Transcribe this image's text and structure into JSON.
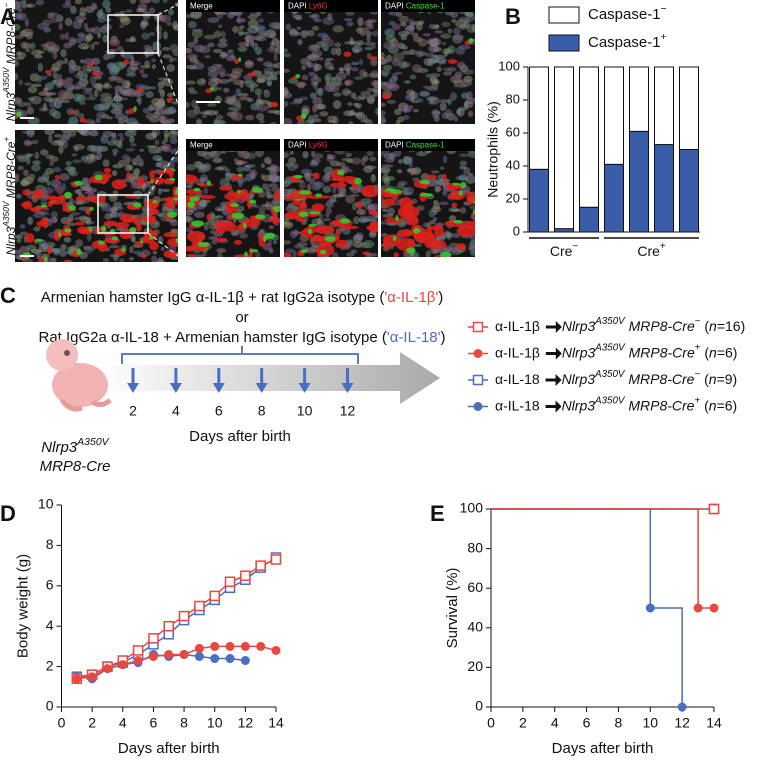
{
  "panel_labels": [
    "A",
    "B",
    "C",
    "D",
    "E"
  ],
  "panel_a": {
    "rows": [
      {
        "label": [
          "Nlrp3",
          "A350V",
          " MRP8-Cre",
          "−"
        ]
      },
      {
        "label": [
          "Nlrp3",
          "A350V",
          " MRP8-Cre",
          "+"
        ]
      }
    ],
    "insets": [
      [
        "Merge"
      ],
      [
        "DAPI ",
        "Ly6G"
      ],
      [
        "DAPI ",
        "Caspase-1"
      ]
    ]
  },
  "panel_c": {
    "line1": [
      "Armenian hamster IgG α-IL-1β + rat IgG2a isotype (",
      "'α-IL-1β'",
      ")"
    ],
    "or": "or",
    "line2": [
      "Rat IgG2a α-IL-18 + Armenian hamster IgG isotype (",
      "'α-IL-18'",
      ")"
    ],
    "mouse_label": [
      [
        "Nlrp3",
        "A350V"
      ],
      [
        "MRP8-Cre"
      ]
    ],
    "days": [
      2,
      4,
      6,
      8,
      10,
      12
    ],
    "days_label": "Days after birth",
    "legend": [
      {
        "parts": [
          "α-IL-1β ",
          "Nlrp3",
          "A350V",
          " MRP8-Cre",
          "−",
          " (",
          "n",
          "=16)"
        ],
        "color": "#e8483f",
        "marker": "open-square"
      },
      {
        "parts": [
          "α-IL-1β ",
          "Nlrp3",
          "A350V",
          " MRP8-Cre",
          "+",
          " (",
          "n",
          "=6)"
        ],
        "color": "#e8483f",
        "marker": "filled-circle"
      },
      {
        "parts": [
          "α-IL-18 ",
          "Nlrp3",
          "A350V",
          " MRP8-Cre",
          "−",
          " (",
          "n",
          "=9)"
        ],
        "color": "#4a6fc0",
        "marker": "open-square"
      },
      {
        "parts": [
          "α-IL-18 ",
          "Nlrp3",
          "A350V",
          " MRP8-Cre",
          "+",
          " (",
          "n",
          "=6)"
        ],
        "color": "#4a6fc0",
        "marker": "filled-circle"
      }
    ]
  },
  "chart_data": [
    {
      "type": "stacked_bar",
      "ylabel": "Neutrophils (%)",
      "categories": [
        null,
        null,
        null,
        null,
        null,
        null,
        null
      ],
      "groups": [
        {
          "label": [
            "Cre",
            "−"
          ],
          "count": 3
        },
        {
          "label": [
            "Cre",
            "+"
          ],
          "count": 4
        }
      ],
      "series": [
        {
          "name": [
            "Caspase-1",
            "+"
          ],
          "color": "#3a5daa",
          "values": [
            38,
            2,
            15,
            41,
            61,
            53,
            50
          ]
        },
        {
          "name": [
            "Caspase-1",
            "−"
          ],
          "color": "#ffffff",
          "values": [
            62,
            98,
            85,
            59,
            39,
            47,
            50
          ]
        }
      ],
      "ylim": [
        0,
        100
      ],
      "yticks": [
        0,
        20,
        40,
        60,
        80,
        100
      ]
    },
    {
      "type": "line",
      "xlabel": "Days after birth",
      "ylabel": "Body weight (g)",
      "x": [
        1,
        2,
        3,
        4,
        5,
        6,
        7,
        8,
        9,
        10,
        11,
        12,
        13,
        14
      ],
      "series": [
        {
          "color": "#4a6fc0",
          "marker": "open-square",
          "values": [
            1.5,
            1.6,
            2.0,
            2.2,
            2.6,
            3.1,
            3.6,
            4.3,
            4.8,
            5.3,
            5.9,
            6.3,
            6.9,
            7.4
          ]
        },
        {
          "color": "#4a6fc0",
          "marker": "filled-circle",
          "values": [
            1.5,
            1.4,
            1.9,
            2.1,
            2.2,
            2.6,
            2.5,
            2.6,
            2.5,
            2.4,
            2.4,
            2.3,
            null,
            null
          ]
        },
        {
          "color": "#e8483f",
          "marker": "open-square",
          "values": [
            1.4,
            1.6,
            2.0,
            2.3,
            2.8,
            3.4,
            4.0,
            4.5,
            5.0,
            5.5,
            6.2,
            6.5,
            7.0,
            7.3
          ]
        },
        {
          "color": "#e8483f",
          "marker": "filled-circle",
          "values": [
            1.4,
            1.5,
            1.9,
            2.1,
            2.3,
            2.5,
            2.6,
            2.6,
            2.9,
            3.0,
            3.0,
            3.0,
            3.0,
            2.8
          ]
        }
      ],
      "xlim": [
        0,
        14
      ],
      "xticks": [
        0,
        2,
        4,
        6,
        8,
        10,
        12,
        14
      ],
      "ylim": [
        0,
        10
      ],
      "yticks": [
        0,
        2,
        4,
        6,
        8,
        10
      ]
    },
    {
      "type": "step",
      "xlabel": "Days after birth",
      "ylabel": "Survival (%)",
      "series": [
        {
          "color": "#4a6fc0",
          "marker": "open-square",
          "x": [
            0,
            14
          ],
          "values": [
            100,
            100
          ]
        },
        {
          "color": "#4a6fc0",
          "marker": "filled-circle",
          "x": [
            0,
            10,
            12
          ],
          "values": [
            100,
            50,
            0
          ]
        },
        {
          "color": "#e8483f",
          "marker": "open-square",
          "dashed": true,
          "x": [
            0,
            14
          ],
          "values": [
            100,
            100
          ]
        },
        {
          "color": "#e8483f",
          "marker": "filled-circle",
          "x": [
            0,
            13,
            14
          ],
          "values": [
            100,
            50,
            50
          ]
        }
      ],
      "xlim": [
        0,
        14
      ],
      "xticks": [
        0,
        2,
        4,
        6,
        8,
        10,
        12,
        14
      ],
      "ylim": [
        0,
        100
      ],
      "yticks": [
        0,
        20,
        40,
        60,
        80,
        100
      ]
    }
  ]
}
